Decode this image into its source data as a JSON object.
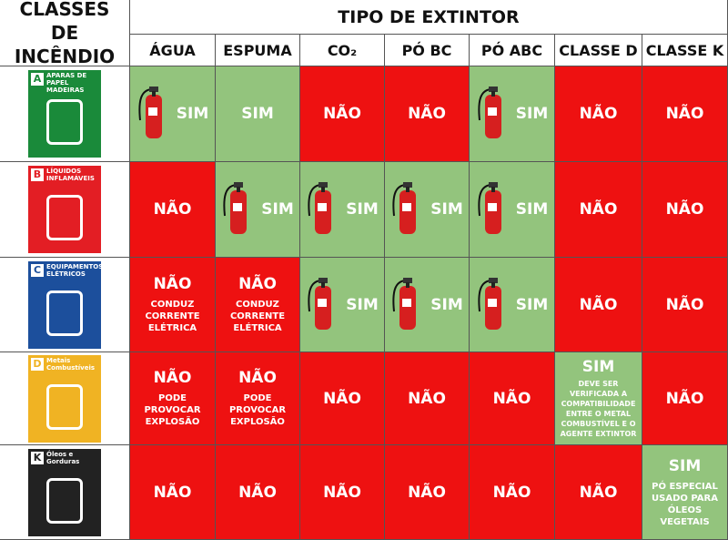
{
  "header": {
    "class_title": "CLASSES DE INCÊNDIO",
    "type_title": "TIPO DE EXTINTOR",
    "columns": [
      "ÁGUA",
      "ESPUMA",
      "CO₂",
      "PÓ BC",
      "PÓ ABC",
      "CLASSE D",
      "CLASSE K"
    ]
  },
  "rows": [
    {
      "letter": "A",
      "label": "APARAS DE PAPEL MADEIRAS",
      "color": "#1a8a3a",
      "cells": [
        {
          "status": "SIM",
          "color": "#93c47d",
          "extinguisher": true
        },
        {
          "status": "SIM",
          "color": "#93c47d"
        },
        {
          "status": "NÃO",
          "color": "#ee1111"
        },
        {
          "status": "NÃO",
          "color": "#ee1111"
        },
        {
          "status": "SIM",
          "color": "#93c47d",
          "extinguisher": true
        },
        {
          "status": "NÃO",
          "color": "#ee1111"
        },
        {
          "status": "NÃO",
          "color": "#ee1111"
        }
      ]
    },
    {
      "letter": "B",
      "label": "LÍQUIDOS INFLAMÁVEIS",
      "color": "#e31e24",
      "cells": [
        {
          "status": "NÃO",
          "color": "#ee1111"
        },
        {
          "status": "SIM",
          "color": "#93c47d",
          "extinguisher": true
        },
        {
          "status": "SIM",
          "color": "#93c47d",
          "extinguisher": true
        },
        {
          "status": "SIM",
          "color": "#93c47d",
          "extinguisher": true
        },
        {
          "status": "SIM",
          "color": "#93c47d",
          "extinguisher": true
        },
        {
          "status": "NÃO",
          "color": "#ee1111"
        },
        {
          "status": "NÃO",
          "color": "#ee1111"
        }
      ]
    },
    {
      "letter": "C",
      "label": "EQUIPAMENTOS ELÉTRICOS",
      "color": "#1c4f9c",
      "cells": [
        {
          "status": "NÃO",
          "color": "#ee1111",
          "note": "CONDUZ CORRENTE ELÉTRICA"
        },
        {
          "status": "NÃO",
          "color": "#ee1111",
          "note": "CONDUZ CORRENTE ELÉTRICA"
        },
        {
          "status": "SIM",
          "color": "#93c47d",
          "extinguisher": true
        },
        {
          "status": "SIM",
          "color": "#93c47d",
          "extinguisher": true
        },
        {
          "status": "SIM",
          "color": "#93c47d",
          "extinguisher": true
        },
        {
          "status": "NÃO",
          "color": "#ee1111"
        },
        {
          "status": "NÃO",
          "color": "#ee1111"
        }
      ]
    },
    {
      "letter": "D",
      "label": "Metais Combustíveis",
      "color": "#f0b323",
      "cells": [
        {
          "status": "NÃO",
          "color": "#ee1111",
          "note": "PODE PROVOCAR EXPLOSÃO"
        },
        {
          "status": "NÃO",
          "color": "#ee1111",
          "note": "PODE PROVOCAR EXPLOSÃO"
        },
        {
          "status": "NÃO",
          "color": "#ee1111"
        },
        {
          "status": "NÃO",
          "color": "#ee1111"
        },
        {
          "status": "NÃO",
          "color": "#ee1111"
        },
        {
          "status": "SIM",
          "color": "#93c47d",
          "note": "DEVE SER VERIFICADA A COMPATIBILIDADE ENTRE O METAL COMBUSTÍVEL E O AGENTE EXTINTOR"
        },
        {
          "status": "NÃO",
          "color": "#ee1111"
        }
      ]
    },
    {
      "letter": "K",
      "label": "Óleos e Gorduras",
      "color": "#222222",
      "cells": [
        {
          "status": "NÃO",
          "color": "#ee1111"
        },
        {
          "status": "NÃO",
          "color": "#ee1111"
        },
        {
          "status": "NÃO",
          "color": "#ee1111"
        },
        {
          "status": "NÃO",
          "color": "#ee1111"
        },
        {
          "status": "NÃO",
          "color": "#ee1111"
        },
        {
          "status": "NÃO",
          "color": "#ee1111"
        },
        {
          "status": "SIM",
          "color": "#93c47d",
          "note": "PÓ ESPECIAL USADO PARA ÓLEOS VEGETAIS"
        }
      ]
    }
  ]
}
